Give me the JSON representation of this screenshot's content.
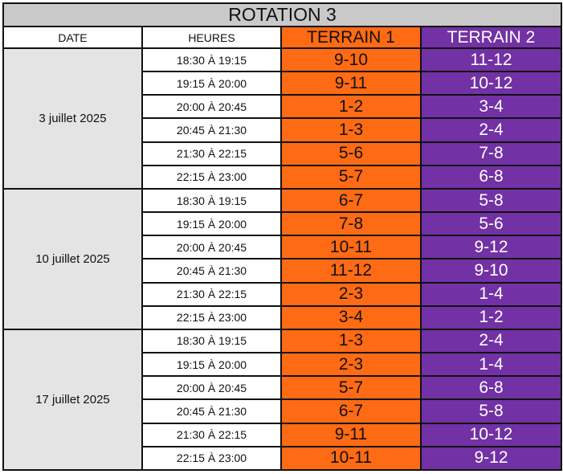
{
  "title": "ROTATION 3",
  "headers": {
    "date": "DATE",
    "hours": "HEURES",
    "terrain1": "TERRAIN 1",
    "terrain2": "TERRAIN 2"
  },
  "colors": {
    "terrain1": "#ff6a14",
    "terrain2": "#7231a4",
    "title_bg": "#c9c9c9",
    "date_bg": "#e4e4e4"
  },
  "groups": [
    {
      "date": "3 juillet 2025",
      "rows": [
        {
          "time": "18:30 À 19:15",
          "t1": "9-10",
          "t2": "11-12"
        },
        {
          "time": "19:15 À 20:00",
          "t1": "9-11",
          "t2": "10-12"
        },
        {
          "time": "20:00 À 20:45",
          "t1": "1-2",
          "t2": "3-4"
        },
        {
          "time": "20:45 À 21:30",
          "t1": "1-3",
          "t2": "2-4"
        },
        {
          "time": "21:30 À 22:15",
          "t1": "5-6",
          "t2": "7-8"
        },
        {
          "time": "22:15 À 23:00",
          "t1": "5-7",
          "t2": "6-8"
        }
      ]
    },
    {
      "date": "10 juillet 2025",
      "rows": [
        {
          "time": "18:30 À 19:15",
          "t1": "6-7",
          "t2": "5-8"
        },
        {
          "time": "19:15 À 20:00",
          "t1": "7-8",
          "t2": "5-6"
        },
        {
          "time": "20:00 À 20:45",
          "t1": "10-11",
          "t2": "9-12"
        },
        {
          "time": "20:45 À 21:30",
          "t1": "11-12",
          "t2": "9-10"
        },
        {
          "time": "21:30 À 22:15",
          "t1": "2-3",
          "t2": "1-4"
        },
        {
          "time": "22:15 À 23:00",
          "t1": "3-4",
          "t2": "1-2"
        }
      ]
    },
    {
      "date": "17 juillet 2025",
      "rows": [
        {
          "time": "18:30 À 19:15",
          "t1": "1-3",
          "t2": "2-4"
        },
        {
          "time": "19:15 À 20:00",
          "t1": "2-3",
          "t2": "1-4"
        },
        {
          "time": "20:00 À 20:45",
          "t1": "5-7",
          "t2": "6-8"
        },
        {
          "time": "20:45 À 21:30",
          "t1": "6-7",
          "t2": "5-8"
        },
        {
          "time": "21:30 À 22:15",
          "t1": "9-11",
          "t2": "10-12"
        },
        {
          "time": "22:15 À 23:00",
          "t1": "10-11",
          "t2": "9-12"
        }
      ]
    }
  ]
}
